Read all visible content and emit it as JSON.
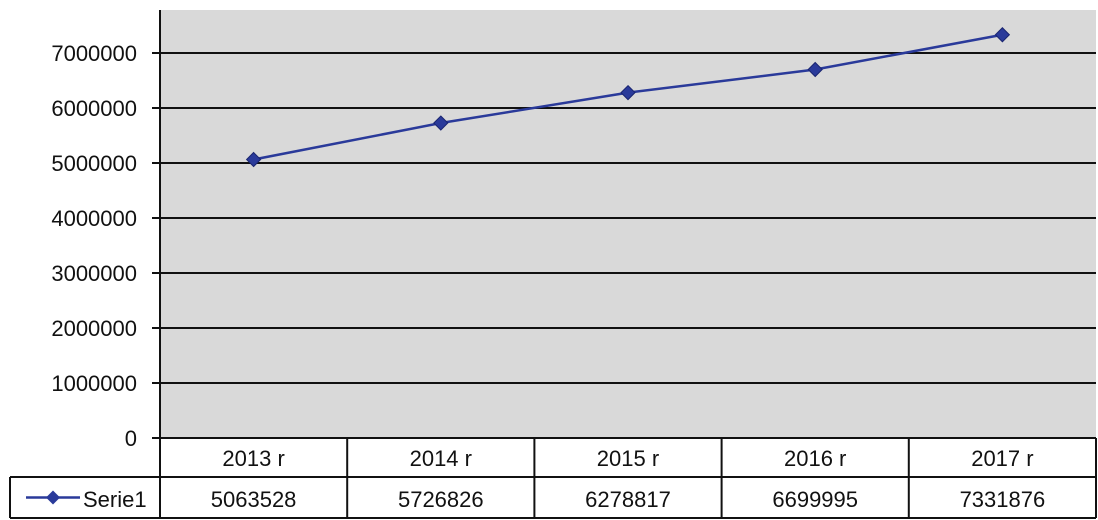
{
  "chart_data": {
    "type": "line",
    "categories": [
      "2013 r",
      "2014 r",
      "2015 r",
      "2016 r",
      "2017 r"
    ],
    "series": [
      {
        "name": "Serie1",
        "values": [
          5063528,
          5726826,
          6278817,
          6699995,
          7331876
        ],
        "color": "#2a3a9a",
        "marker": "diamond"
      }
    ],
    "ylim": [
      0,
      7000000
    ],
    "y_ticks": [
      "0",
      "1000000",
      "2000000",
      "3000000",
      "4000000",
      "5000000",
      "6000000",
      "7000000"
    ],
    "grid": true,
    "data_table": true,
    "plot_background": "#d9d9d9"
  }
}
